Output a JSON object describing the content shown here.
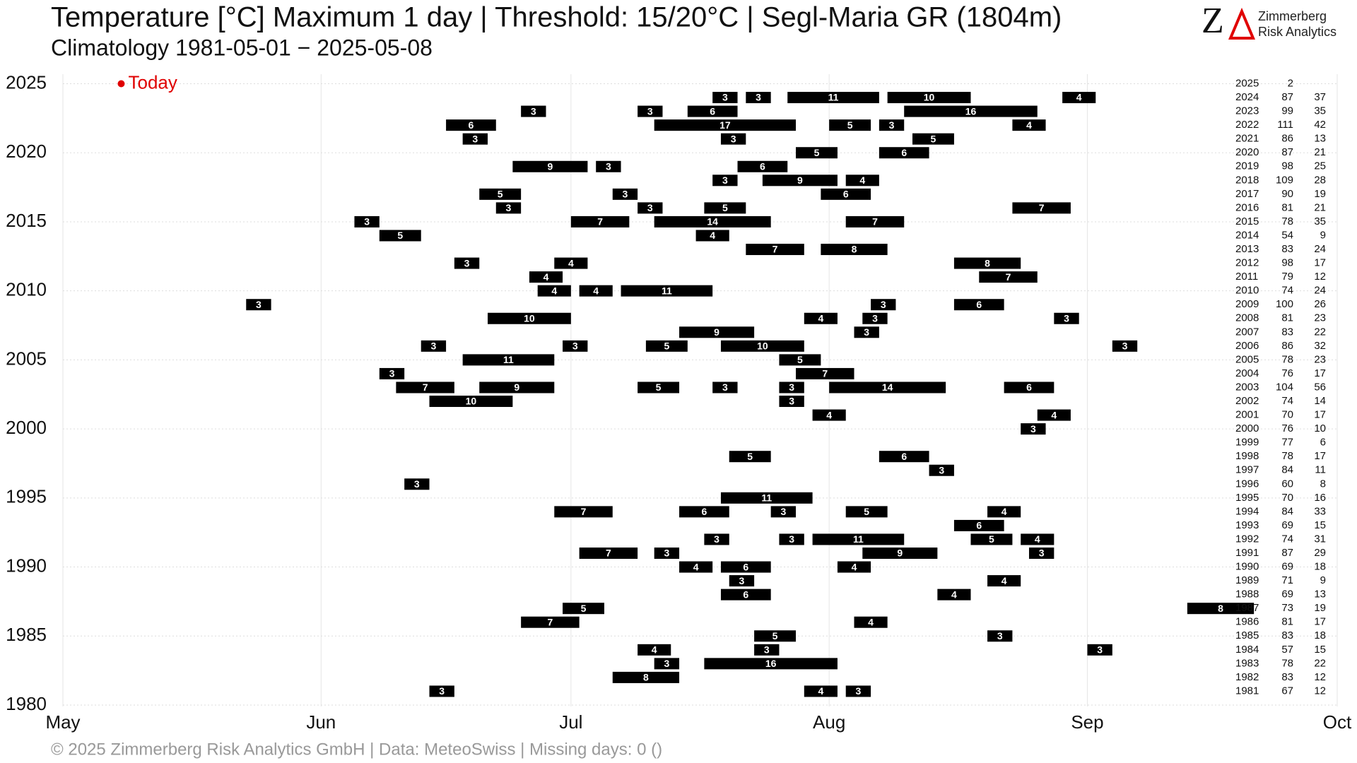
{
  "chart_data": {
    "type": "timeline",
    "title": "Temperature [°C] Maximum 1 day | Threshold: 15/20°C | Segl-Maria  GR (1804m)",
    "subtitle": "Climatology 1981-05-01 − 2025-05-08",
    "logo": {
      "mark": "Z",
      "line1": "Zimmerberg",
      "line2": "Risk Analytics"
    },
    "footer": "©  2025 Zimmerberg Risk Analytics GmbH | Data: MeteoSwiss | Missing days: 0 ()",
    "today": {
      "label": "Today",
      "x": 7,
      "year": 2025,
      "color": "#e00000"
    },
    "xlim": [
      0,
      153
    ],
    "xticks": [
      {
        "value": 0,
        "label": "May"
      },
      {
        "value": 31,
        "label": "Jun"
      },
      {
        "value": 61,
        "label": "Jul"
      },
      {
        "value": 92,
        "label": "Aug"
      },
      {
        "value": 123,
        "label": "Sep"
      },
      {
        "value": 153,
        "label": "Oct"
      }
    ],
    "ylim": [
      1980,
      2025
    ],
    "yticks": [
      1980,
      1985,
      1990,
      1995,
      2000,
      2005,
      2010,
      2015,
      2020,
      2025
    ],
    "grid": true,
    "color": "#000000",
    "years": [
      2025,
      2024,
      2023,
      2022,
      2021,
      2020,
      2019,
      2018,
      2017,
      2016,
      2015,
      2014,
      2013,
      2012,
      2011,
      2010,
      2009,
      2008,
      2007,
      2006,
      2005,
      2004,
      2003,
      2002,
      2001,
      2000,
      1999,
      1998,
      1997,
      1996,
      1995,
      1994,
      1993,
      1992,
      1991,
      1990,
      1989,
      1988,
      1987,
      1986,
      1985,
      1984,
      1983,
      1982,
      1981
    ],
    "days_above_15": [
      2,
      87,
      99,
      111,
      86,
      87,
      98,
      109,
      90,
      81,
      78,
      54,
      83,
      98,
      79,
      74,
      100,
      81,
      83,
      86,
      78,
      76,
      104,
      74,
      70,
      76,
      77,
      78,
      84,
      60,
      70,
      84,
      69,
      74,
      87,
      69,
      71,
      69,
      73,
      81,
      83,
      57,
      78,
      83,
      67
    ],
    "days_above_20": [
      null,
      37,
      35,
      42,
      13,
      21,
      25,
      28,
      19,
      21,
      35,
      9,
      24,
      17,
      12,
      24,
      26,
      23,
      22,
      32,
      23,
      17,
      56,
      14,
      17,
      10,
      6,
      17,
      11,
      8,
      16,
      33,
      15,
      31,
      29,
      18,
      9,
      13,
      19,
      17,
      18,
      15,
      22,
      12,
      12
    ],
    "runs": [
      [],
      [
        {
          "start": 78,
          "length": 3
        },
        {
          "start": 82,
          "length": 3
        },
        {
          "start": 87,
          "length": 11
        },
        {
          "start": 99,
          "length": 10
        },
        {
          "start": 120,
          "length": 4
        }
      ],
      [
        {
          "start": 55,
          "length": 3
        },
        {
          "start": 69,
          "length": 3
        },
        {
          "start": 75,
          "length": 6
        },
        {
          "start": 101,
          "length": 16
        }
      ],
      [
        {
          "start": 46,
          "length": 6
        },
        {
          "start": 71,
          "length": 17
        },
        {
          "start": 92,
          "length": 5
        },
        {
          "start": 98,
          "length": 3
        },
        {
          "start": 114,
          "length": 4
        }
      ],
      [
        {
          "start": 48,
          "length": 3
        },
        {
          "start": 79,
          "length": 3
        },
        {
          "start": 102,
          "length": 5
        }
      ],
      [
        {
          "start": 88,
          "length": 5
        },
        {
          "start": 98,
          "length": 6
        }
      ],
      [
        {
          "start": 54,
          "length": 9
        },
        {
          "start": 64,
          "length": 3
        },
        {
          "start": 81,
          "length": 6
        }
      ],
      [
        {
          "start": 78,
          "length": 3
        },
        {
          "start": 84,
          "length": 9
        },
        {
          "start": 94,
          "length": 4
        }
      ],
      [
        {
          "start": 50,
          "length": 5
        },
        {
          "start": 66,
          "length": 3
        },
        {
          "start": 91,
          "length": 6
        }
      ],
      [
        {
          "start": 52,
          "length": 3
        },
        {
          "start": 69,
          "length": 3
        },
        {
          "start": 77,
          "length": 5
        },
        {
          "start": 114,
          "length": 7
        }
      ],
      [
        {
          "start": 35,
          "length": 3
        },
        {
          "start": 61,
          "length": 7
        },
        {
          "start": 71,
          "length": 14
        },
        {
          "start": 94,
          "length": 7
        }
      ],
      [
        {
          "start": 38,
          "length": 5
        },
        {
          "start": 76,
          "length": 4
        }
      ],
      [
        {
          "start": 82,
          "length": 7
        },
        {
          "start": 91,
          "length": 8
        }
      ],
      [
        {
          "start": 47,
          "length": 3
        },
        {
          "start": 59,
          "length": 4
        },
        {
          "start": 107,
          "length": 8
        }
      ],
      [
        {
          "start": 56,
          "length": 4
        },
        {
          "start": 110,
          "length": 7
        }
      ],
      [
        {
          "start": 57,
          "length": 4
        },
        {
          "start": 62,
          "length": 4
        },
        {
          "start": 67,
          "length": 11
        }
      ],
      [
        {
          "start": 22,
          "length": 3
        },
        {
          "start": 97,
          "length": 3
        },
        {
          "start": 107,
          "length": 6
        }
      ],
      [
        {
          "start": 51,
          "length": 10
        },
        {
          "start": 89,
          "length": 4
        },
        {
          "start": 96,
          "length": 3
        },
        {
          "start": 119,
          "length": 3
        }
      ],
      [
        {
          "start": 74,
          "length": 9
        },
        {
          "start": 95,
          "length": 3
        }
      ],
      [
        {
          "start": 43,
          "length": 3
        },
        {
          "start": 60,
          "length": 3
        },
        {
          "start": 70,
          "length": 5
        },
        {
          "start": 79,
          "length": 10
        },
        {
          "start": 126,
          "length": 3
        }
      ],
      [
        {
          "start": 48,
          "length": 11
        },
        {
          "start": 86,
          "length": 5
        }
      ],
      [
        {
          "start": 38,
          "length": 3
        },
        {
          "start": 88,
          "length": 7
        }
      ],
      [
        {
          "start": 40,
          "length": 7
        },
        {
          "start": 50,
          "length": 9
        },
        {
          "start": 69,
          "length": 5
        },
        {
          "start": 78,
          "length": 3
        },
        {
          "start": 86,
          "length": 3
        },
        {
          "start": 92,
          "length": 14
        },
        {
          "start": 113,
          "length": 6
        }
      ],
      [
        {
          "start": 44,
          "length": 10
        },
        {
          "start": 86,
          "length": 3
        }
      ],
      [
        {
          "start": 90,
          "length": 4
        },
        {
          "start": 117,
          "length": 4
        }
      ],
      [
        {
          "start": 115,
          "length": 3
        }
      ],
      [],
      [
        {
          "start": 80,
          "length": 5
        },
        {
          "start": 98,
          "length": 6
        }
      ],
      [
        {
          "start": 104,
          "length": 3
        }
      ],
      [
        {
          "start": 41,
          "length": 3
        }
      ],
      [
        {
          "start": 79,
          "length": 11
        }
      ],
      [
        {
          "start": 59,
          "length": 7
        },
        {
          "start": 74,
          "length": 6
        },
        {
          "start": 85,
          "length": 3
        },
        {
          "start": 94,
          "length": 5
        },
        {
          "start": 111,
          "length": 4
        }
      ],
      [
        {
          "start": 107,
          "length": 6
        }
      ],
      [
        {
          "start": 77,
          "length": 3
        },
        {
          "start": 86,
          "length": 3
        },
        {
          "start": 90,
          "length": 11
        },
        {
          "start": 109,
          "length": 5
        },
        {
          "start": 115,
          "length": 4
        }
      ],
      [
        {
          "start": 62,
          "length": 7
        },
        {
          "start": 71,
          "length": 3
        },
        {
          "start": 96,
          "length": 9
        },
        {
          "start": 116,
          "length": 3
        }
      ],
      [
        {
          "start": 74,
          "length": 4
        },
        {
          "start": 79,
          "length": 6
        },
        {
          "start": 93,
          "length": 4
        }
      ],
      [
        {
          "start": 80,
          "length": 3
        },
        {
          "start": 111,
          "length": 4
        }
      ],
      [
        {
          "start": 79,
          "length": 6
        },
        {
          "start": 105,
          "length": 4
        }
      ],
      [
        {
          "start": 60,
          "length": 5
        },
        {
          "start": 135,
          "length": 8
        }
      ],
      [
        {
          "start": 55,
          "length": 7
        },
        {
          "start": 95,
          "length": 4
        }
      ],
      [
        {
          "start": 83,
          "length": 5
        },
        {
          "start": 111,
          "length": 3
        }
      ],
      [
        {
          "start": 69,
          "length": 4
        },
        {
          "start": 83,
          "length": 3
        },
        {
          "start": 123,
          "length": 3
        }
      ],
      [
        {
          "start": 71,
          "length": 3
        },
        {
          "start": 77,
          "length": 16
        }
      ],
      [
        {
          "start": 66,
          "length": 8
        }
      ],
      [
        {
          "start": 44,
          "length": 3
        },
        {
          "start": 89,
          "length": 4
        },
        {
          "start": 94,
          "length": 3
        }
      ]
    ]
  }
}
